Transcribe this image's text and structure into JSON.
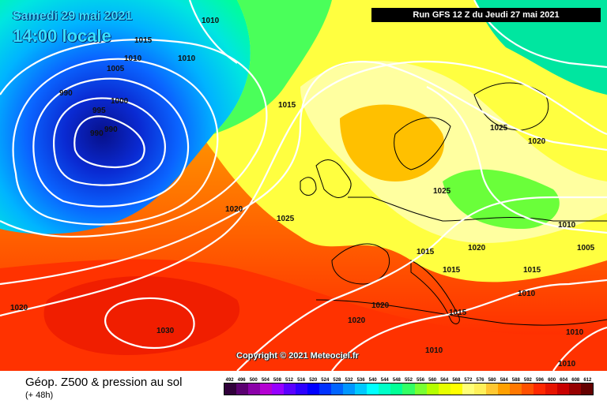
{
  "header": {
    "date": "Samedi 29 mai 2021",
    "time": "14:00 locale",
    "run": "Run GFS 12 Z du Jeudi 27 mai 2021"
  },
  "map": {
    "copyright": "Copyright © 2021 Meteociel.fr",
    "isobar_labels": [
      {
        "text": "1010"
      },
      {
        "text": "1015"
      },
      {
        "text": "1010"
      },
      {
        "text": "1010"
      },
      {
        "text": "1005"
      },
      {
        "text": "990"
      },
      {
        "text": "1000"
      },
      {
        "text": "995"
      },
      {
        "text": "990"
      },
      {
        "text": "990"
      },
      {
        "text": "1015"
      },
      {
        "text": "1025"
      },
      {
        "text": "1020"
      },
      {
        "text": "1020"
      },
      {
        "text": "1025"
      },
      {
        "text": "1025"
      },
      {
        "text": "1015"
      },
      {
        "text": "1020"
      },
      {
        "text": "1010"
      },
      {
        "text": "1005"
      },
      {
        "text": "1015"
      },
      {
        "text": "1015"
      },
      {
        "text": "1010"
      },
      {
        "text": "1020"
      },
      {
        "text": "1020"
      },
      {
        "text": "1030"
      },
      {
        "text": "1020"
      },
      {
        "text": "1015"
      },
      {
        "text": "1010"
      },
      {
        "text": "1010"
      },
      {
        "text": "1010"
      }
    ]
  },
  "legend": {
    "title": "Géop. Z500 & pression au sol",
    "subtitle": "(+ 48h)",
    "scale_values": [
      "492",
      "496",
      "500",
      "504",
      "508",
      "512",
      "516",
      "520",
      "524",
      "528",
      "532",
      "536",
      "540",
      "544",
      "548",
      "552",
      "556",
      "560",
      "564",
      "568",
      "572",
      "576",
      "580",
      "584",
      "588",
      "592",
      "596",
      "600",
      "604",
      "608",
      "612"
    ],
    "scale_colors": [
      "#30003a",
      "#5a0070",
      "#8a00a8",
      "#b400d2",
      "#9600ff",
      "#5a00ff",
      "#2d00ff",
      "#0000ff",
      "#0032ff",
      "#0064ff",
      "#0096ff",
      "#00c8ff",
      "#00ffff",
      "#00ffc8",
      "#00ff96",
      "#32ff64",
      "#78ff32",
      "#b4ff00",
      "#e6ff00",
      "#ffff00",
      "#ffff78",
      "#fff05a",
      "#ffc832",
      "#ffa000",
      "#ff7800",
      "#ff5000",
      "#ff2800",
      "#e61400",
      "#c80000",
      "#960000",
      "#640000"
    ]
  }
}
